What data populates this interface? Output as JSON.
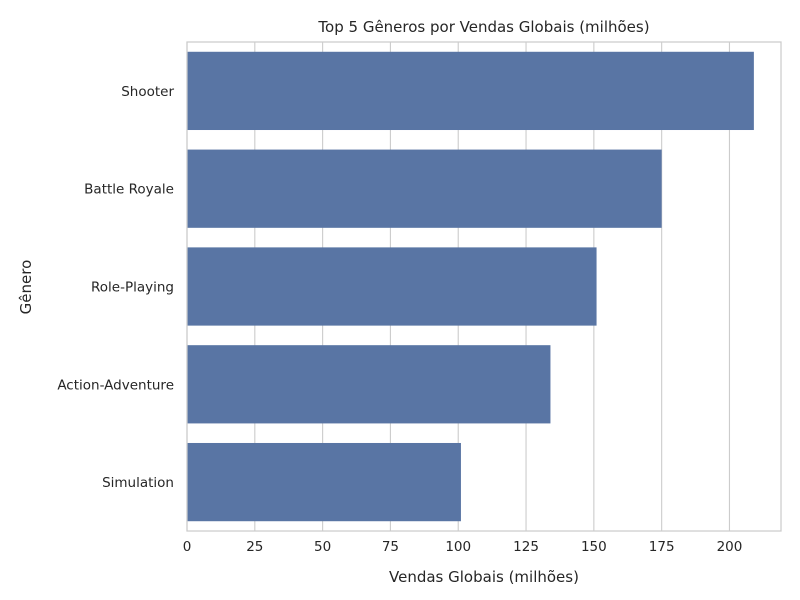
{
  "chart_data": {
    "type": "bar",
    "orientation": "horizontal",
    "title": "Top 5 Gêneros por Vendas Globais (milhões)",
    "xlabel": "Vendas Globais (milhões)",
    "ylabel": "Gênero",
    "categories": [
      "Shooter",
      "Battle Royale",
      "Role-Playing",
      "Action-Adventure",
      "Simulation"
    ],
    "values": [
      209,
      175,
      151,
      134,
      101
    ],
    "xlim": [
      0,
      219
    ],
    "xticks": [
      0,
      25,
      50,
      75,
      100,
      125,
      150,
      175,
      200
    ],
    "grid": true,
    "bar_color": "#5975a4"
  }
}
